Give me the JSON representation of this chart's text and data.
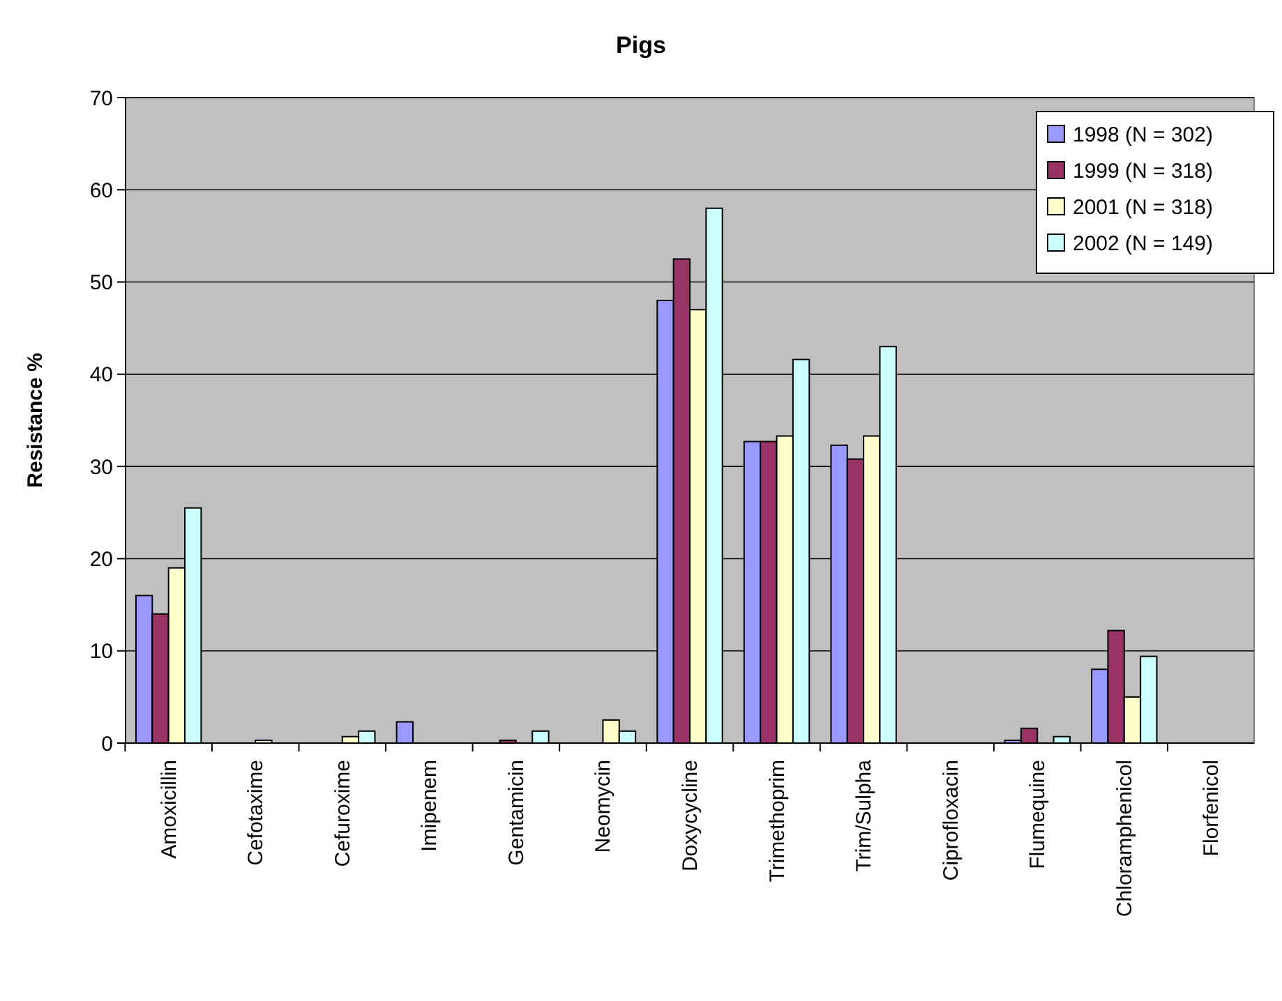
{
  "chart_data": {
    "type": "bar",
    "title": "Pigs",
    "ylabel": "Resistance %",
    "categories": [
      "Amoxicillin",
      "Cefotaxime",
      "Cefuroxime",
      "Imipenem",
      "Gentamicin",
      "Neomycin",
      "Doxycycline",
      "Trimethoprim",
      "Trim/Sulpha",
      "Ciprofloxacin",
      "Flumequine",
      "Chloramphenicol",
      "Florfenicol"
    ],
    "series": [
      {
        "name": "1998 (N = 302)",
        "color": "#9999ff",
        "values": [
          16,
          0,
          0,
          2.3,
          0,
          0,
          48,
          32.7,
          32.3,
          0,
          0.3,
          8,
          0
        ]
      },
      {
        "name": "1999 (N = 318)",
        "color": "#993366",
        "values": [
          14,
          0,
          0,
          0,
          0.3,
          0,
          52.5,
          32.7,
          30.8,
          0,
          1.6,
          12.2,
          0
        ]
      },
      {
        "name": "2001 (N = 318)",
        "color": "#ffffcc",
        "values": [
          19,
          0.3,
          0.7,
          0,
          0,
          2.5,
          47,
          33.3,
          33.3,
          0,
          0,
          5,
          0
        ]
      },
      {
        "name": "2002 (N = 149)",
        "color": "#ccffff",
        "values": [
          25.5,
          0,
          1.3,
          0,
          1.3,
          1.3,
          58,
          41.6,
          43,
          0,
          0.7,
          9.4,
          0
        ]
      }
    ],
    "ylim": [
      0,
      70
    ],
    "yticks": [
      0,
      10,
      20,
      30,
      40,
      50,
      60,
      70
    ],
    "grid": "y",
    "legend": "top right"
  }
}
